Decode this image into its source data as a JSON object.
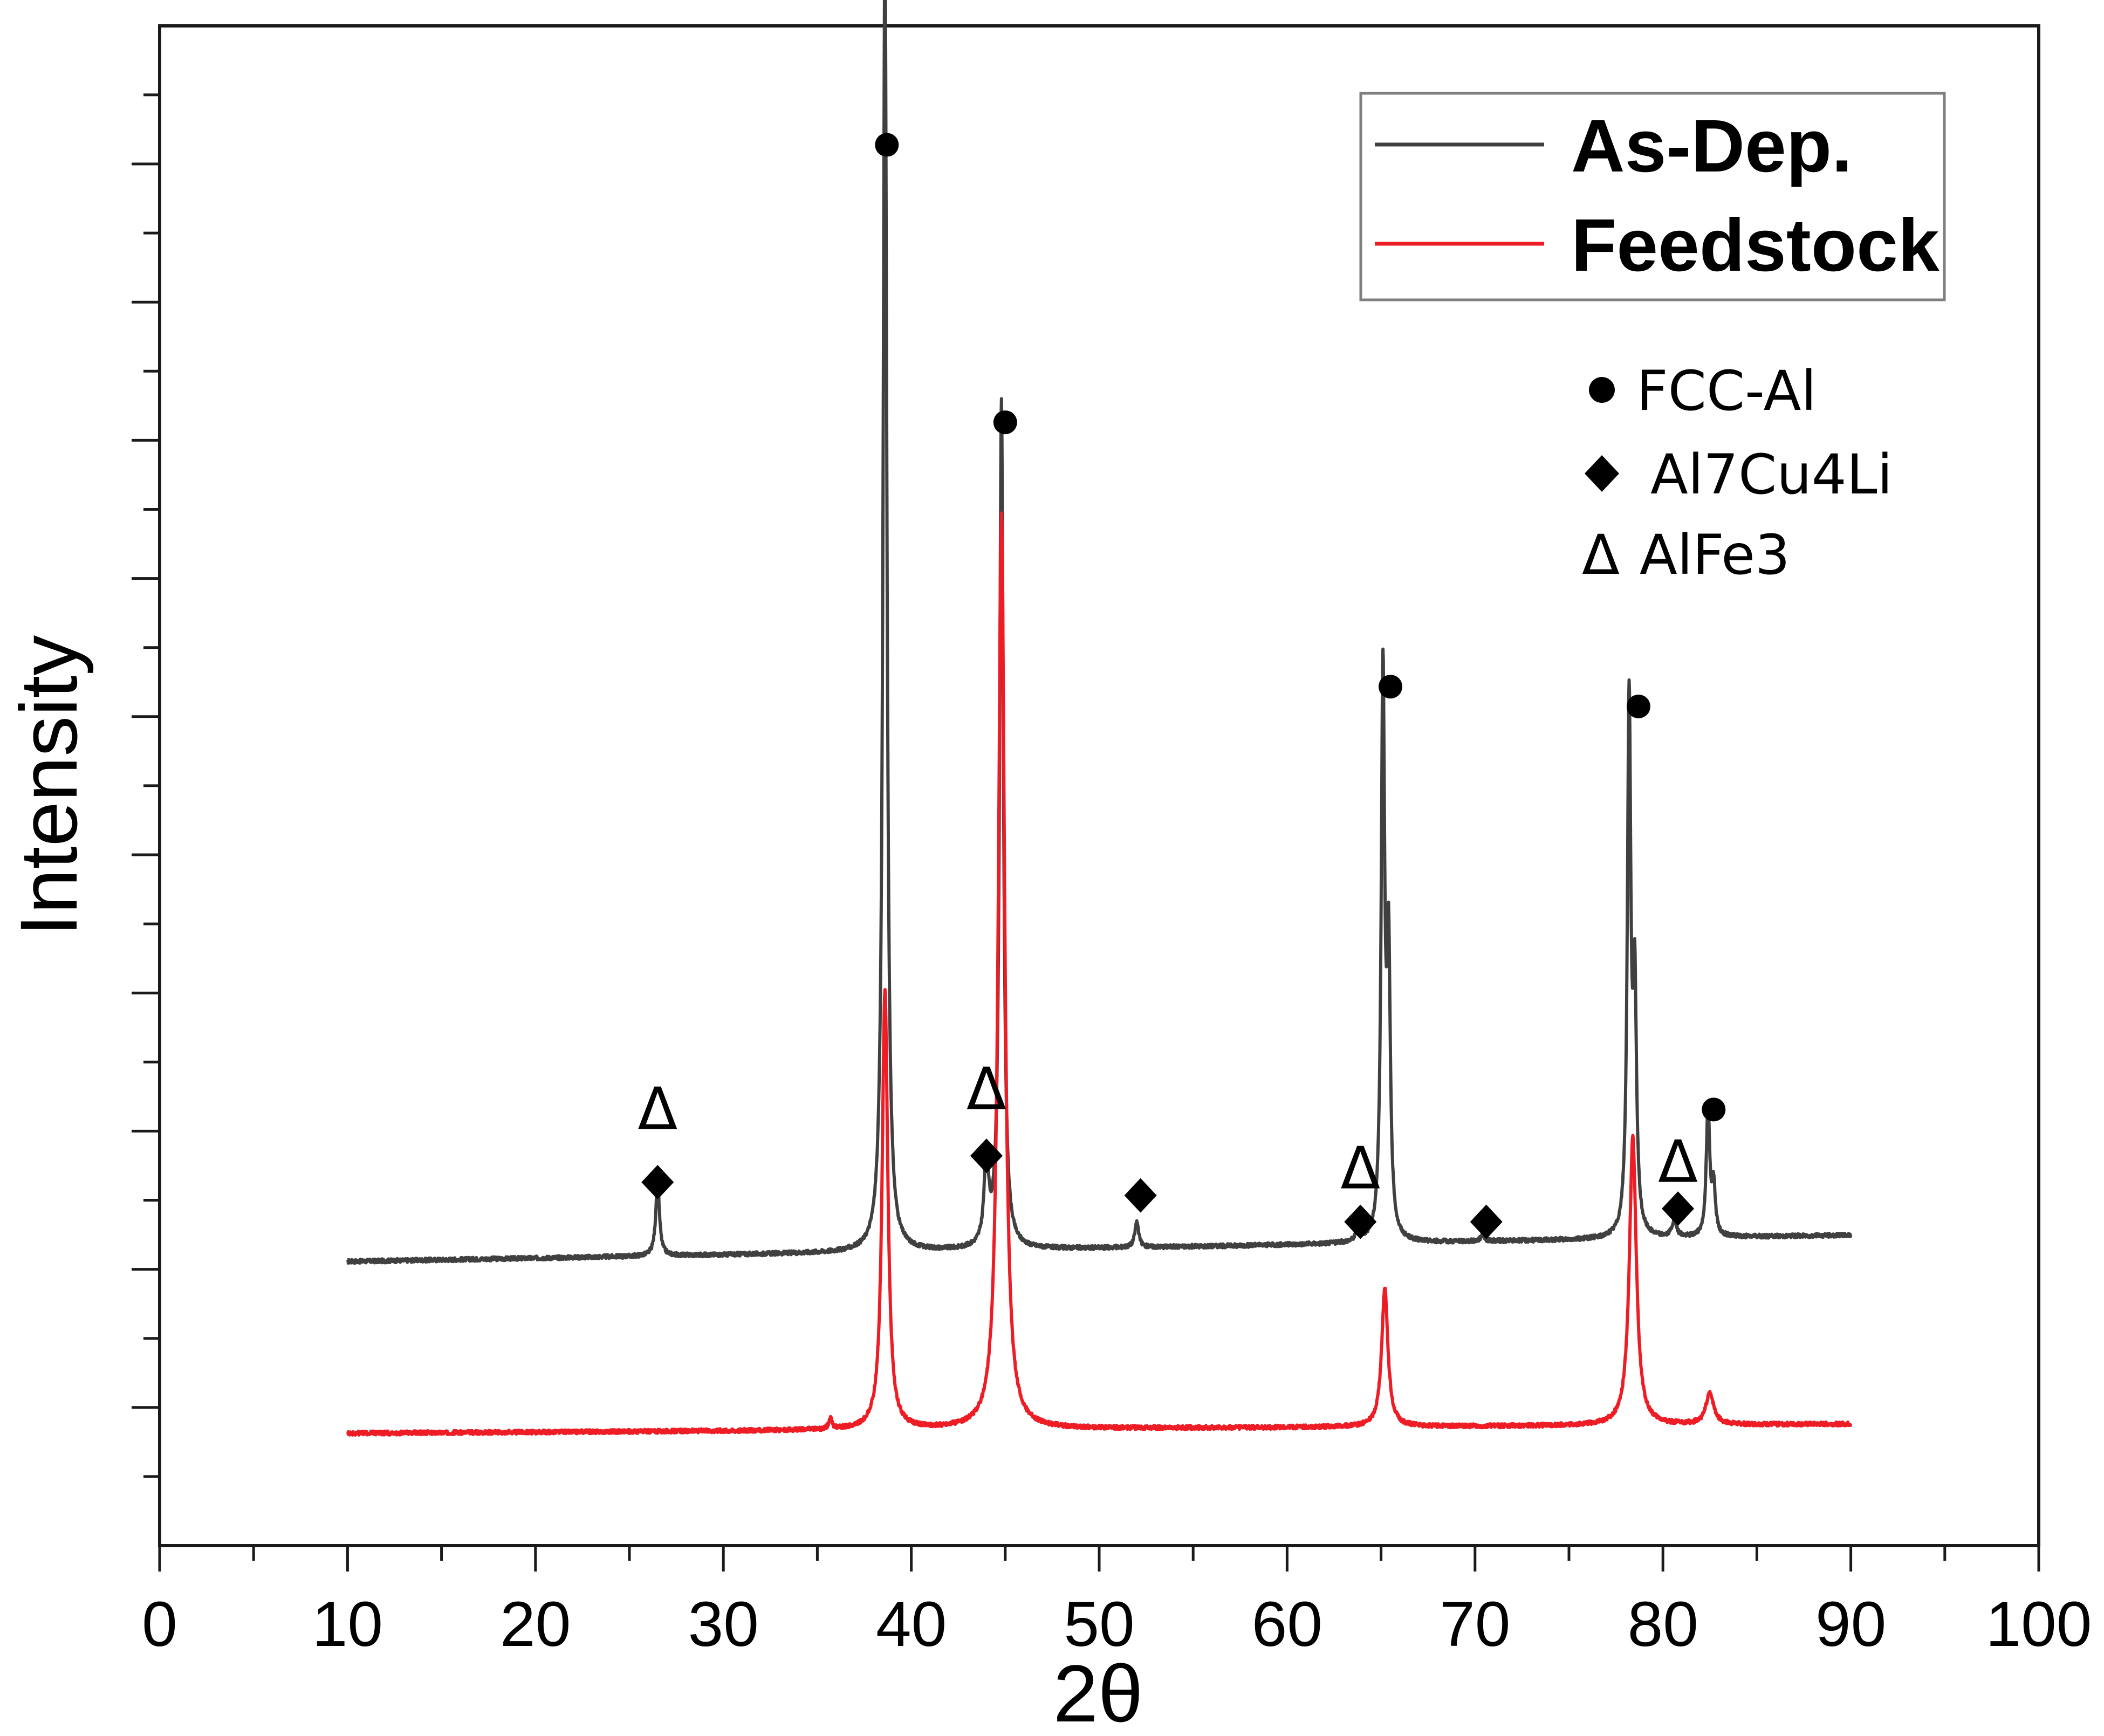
{
  "chart_data": {
    "type": "line",
    "xlabel": "2θ",
    "ylabel": "Intensity",
    "xlim": [
      0,
      100
    ],
    "x_ticks": [
      "0",
      "10",
      "20",
      "30",
      "40",
      "50",
      "60",
      "70",
      "80",
      "90",
      "100"
    ],
    "y_scale": "arbitrary units, no tick labels",
    "legend": {
      "placement": "top-right",
      "entries": [
        "As-Dep.",
        "Feedstock"
      ]
    },
    "phase_legend": [
      {
        "marker": "●",
        "label": "FCC-Al"
      },
      {
        "marker": "◆",
        "label": "Al7Cu4Li"
      },
      {
        "marker": "Δ",
        "label": "AlFe3"
      }
    ],
    "series": [
      {
        "name": "As-Dep.",
        "color": "#404040",
        "baseline_start": 2.15,
        "baseline_end": 2.35,
        "peaks": [
          {
            "x": 26.5,
            "y": 2.75,
            "w": 0.12
          },
          {
            "x": 38.6,
            "y": 12.15,
            "w": 0.12
          },
          {
            "x": 44.0,
            "y": 2.9,
            "w": 0.14
          },
          {
            "x": 44.8,
            "y": 8.65,
            "w": 0.12
          },
          {
            "x": 52.0,
            "y": 2.45,
            "w": 0.12
          },
          {
            "x": 63.8,
            "y": 2.4,
            "w": 0.12
          },
          {
            "x": 65.1,
            "y": 6.55,
            "w": 0.11
          },
          {
            "x": 65.4,
            "y": 4.35,
            "w": 0.11
          },
          {
            "x": 70.4,
            "y": 2.35,
            "w": 0.12
          },
          {
            "x": 78.2,
            "y": 6.35,
            "w": 0.11
          },
          {
            "x": 78.5,
            "y": 4.1,
            "w": 0.11
          },
          {
            "x": 80.6,
            "y": 2.45,
            "w": 0.14
          },
          {
            "x": 82.4,
            "y": 3.3,
            "w": 0.11
          },
          {
            "x": 82.7,
            "y": 2.7,
            "w": 0.11
          }
        ]
      },
      {
        "name": "Feedstock",
        "color": "#ee1c25",
        "baseline_start": 0.85,
        "baseline_end": 0.92,
        "peaks": [
          {
            "x": 35.7,
            "y": 0.95,
            "w": 0.1
          },
          {
            "x": 38.6,
            "y": 4.2,
            "w": 0.18
          },
          {
            "x": 44.8,
            "y": 7.8,
            "w": 0.2
          },
          {
            "x": 65.2,
            "y": 1.95,
            "w": 0.2
          },
          {
            "x": 78.4,
            "y": 3.1,
            "w": 0.22
          },
          {
            "x": 82.5,
            "y": 1.15,
            "w": 0.25
          }
        ]
      }
    ],
    "annotations": [
      {
        "symbol": "●",
        "x": 38.7,
        "y": 10.6
      },
      {
        "symbol": "●",
        "x": 45.0,
        "y": 8.5
      },
      {
        "symbol": "●",
        "x": 65.5,
        "y": 6.5
      },
      {
        "symbol": "●",
        "x": 78.7,
        "y": 6.35
      },
      {
        "symbol": "●",
        "x": 82.7,
        "y": 3.3
      },
      {
        "symbol": "◆",
        "x": 26.5,
        "y": 2.75
      },
      {
        "symbol": "◆",
        "x": 44.0,
        "y": 2.95
      },
      {
        "symbol": "◆",
        "x": 52.2,
        "y": 2.65
      },
      {
        "symbol": "◆",
        "x": 63.9,
        "y": 2.45
      },
      {
        "symbol": "◆",
        "x": 70.6,
        "y": 2.45
      },
      {
        "symbol": "◆",
        "x": 80.8,
        "y": 2.55
      },
      {
        "symbol": "Δ",
        "x": 26.5,
        "y": 3.3
      },
      {
        "symbol": "Δ",
        "x": 44.0,
        "y": 3.45
      },
      {
        "symbol": "Δ",
        "x": 63.9,
        "y": 2.85
      },
      {
        "symbol": "Δ",
        "x": 80.8,
        "y": 2.9
      }
    ]
  }
}
